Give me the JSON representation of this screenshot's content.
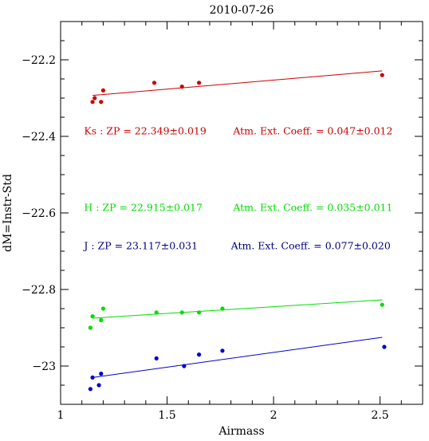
{
  "chart_data": {
    "type": "scatter",
    "title": "2010-07-26",
    "xlabel": "Airmass",
    "ylabel": "dM=Instr-Std",
    "xlim": [
      1.0,
      2.7
    ],
    "ylim": [
      -22.1,
      -23.1
    ],
    "x_ticks": [
      {
        "value": 1,
        "label": "1"
      },
      {
        "value": 1.5,
        "label": "1.5"
      },
      {
        "value": 2,
        "label": "2"
      },
      {
        "value": 2.5,
        "label": "2.5"
      }
    ],
    "y_ticks": [
      {
        "value": -22.2,
        "label": "−22.2"
      },
      {
        "value": -22.4,
        "label": "−22.4"
      },
      {
        "value": -22.6,
        "label": "−22.6"
      },
      {
        "value": -22.8,
        "label": "−22.8"
      },
      {
        "value": -23.0,
        "label": "−23"
      }
    ],
    "grid": false,
    "series": [
      {
        "name": "Ks",
        "color": "#cc0000",
        "x": [
          1.15,
          1.16,
          1.19,
          1.2,
          1.44,
          1.57,
          1.65,
          2.51
        ],
        "y": [
          -22.31,
          -22.3,
          -22.31,
          -22.28,
          -22.26,
          -22.27,
          -22.26,
          -22.24
        ],
        "fit": {
          "x": [
            1.15,
            2.51
          ],
          "y": [
            -22.293,
            -22.229
          ]
        }
      },
      {
        "name": "H",
        "color": "#00dd00",
        "x": [
          1.14,
          1.15,
          1.19,
          1.2,
          1.45,
          1.57,
          1.65,
          1.76,
          2.51
        ],
        "y": [
          -22.9,
          -22.87,
          -22.88,
          -22.85,
          -22.86,
          -22.86,
          -22.86,
          -22.85,
          -22.84
        ],
        "fit": {
          "x": [
            1.15,
            2.51
          ],
          "y": [
            -22.875,
            -22.827
          ]
        }
      },
      {
        "name": "J",
        "color": "#0000cc",
        "x": [
          1.14,
          1.15,
          1.18,
          1.19,
          1.45,
          1.58,
          1.65,
          1.76,
          2.52
        ],
        "y": [
          -23.06,
          -23.03,
          -23.05,
          -23.02,
          -22.98,
          -23.0,
          -22.97,
          -22.96,
          -22.95
        ],
        "fit": {
          "x": [
            1.15,
            2.51
          ],
          "y": [
            -23.03,
            -22.925
          ]
        }
      }
    ],
    "annotations": [
      {
        "text": "Ks : ZP = 22.349±0.019",
        "color": "#cc0000",
        "x": 1.11,
        "y": -22.395
      },
      {
        "text": "Atm. Ext. Coeff. = 0.047±0.012",
        "color": "#cc0000",
        "x": 1.81,
        "y": -22.395
      },
      {
        "text": "H  : ZP = 22.915±0.017",
        "color": "#00dd00",
        "x": 1.11,
        "y": -22.595
      },
      {
        "text": "Atm. Ext. Coeff. = 0.035±0.011",
        "color": "#00dd00",
        "x": 1.81,
        "y": -22.595
      },
      {
        "text": "J  : ZP = 23.117±0.031",
        "color": "#000080",
        "x": 1.11,
        "y": -22.695
      },
      {
        "text": "Atm. Ext. Coeff. = 0.077±0.020",
        "color": "#000080",
        "x": 1.8,
        "y": -22.695
      }
    ]
  }
}
